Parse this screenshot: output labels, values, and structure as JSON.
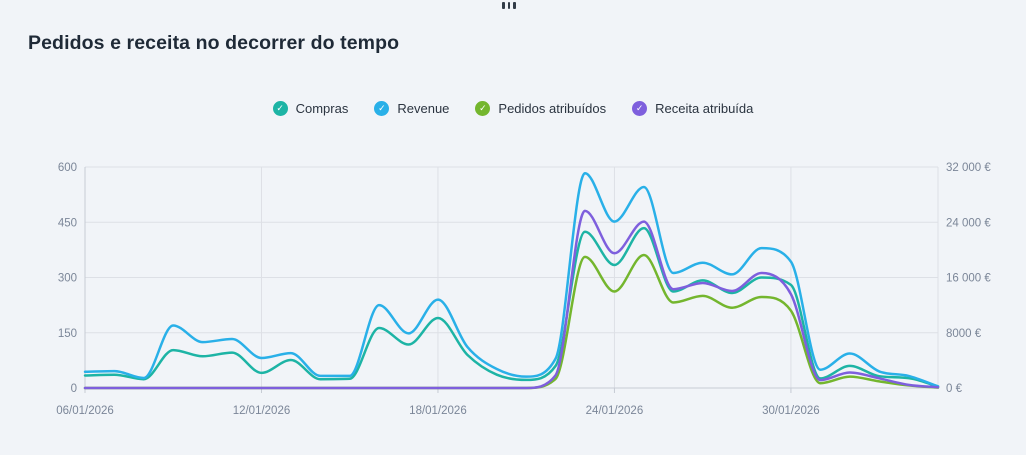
{
  "widget": {
    "title": "Pedidos e receita no decorrer do tempo",
    "drag_handle_icon": "grip-icon"
  },
  "legend": [
    {
      "label": "Compras",
      "color": "#1db4a5",
      "check_icon": "✓"
    },
    {
      "label": "Revenue",
      "color": "#29b0e8",
      "check_icon": "✓"
    },
    {
      "label": "Pedidos atribuídos",
      "color": "#74b62e",
      "check_icon": "✓"
    },
    {
      "label": "Receita atribuída",
      "color": "#7e5fdd",
      "check_icon": "✓"
    }
  ],
  "chart_data": {
    "type": "line",
    "title": "Pedidos e receita no decorrer do tempo",
    "x": [
      "06/01/2026",
      "07/01/2026",
      "08/01/2026",
      "09/01/2026",
      "10/01/2026",
      "11/01/2026",
      "12/01/2026",
      "13/01/2026",
      "14/01/2026",
      "15/01/2026",
      "16/01/2026",
      "17/01/2026",
      "18/01/2026",
      "19/01/2026",
      "20/01/2026",
      "21/01/2026",
      "22/01/2026",
      "23/01/2026",
      "24/01/2026",
      "25/01/2026",
      "26/01/2026",
      "27/01/2026",
      "28/01/2026",
      "29/01/2026",
      "30/01/2026",
      "31/01/2026",
      "01/02/2026",
      "02/02/2026",
      "03/02/2026",
      "04/02/2026"
    ],
    "x_tick_labels": [
      "06/01/2026",
      "12/01/2026",
      "18/01/2026",
      "24/01/2026",
      "30/01/2026"
    ],
    "x_tick_indices": [
      0,
      6,
      12,
      18,
      24
    ],
    "left_axis": {
      "tick_labels": [
        "0",
        "150",
        "300",
        "450",
        "600"
      ],
      "ticks": [
        0,
        150,
        300,
        450,
        600
      ],
      "range": [
        0,
        600
      ]
    },
    "right_axis": {
      "tick_labels": [
        "0 €",
        "8000 €",
        "16 000 €",
        "24 000 €",
        "32 000 €"
      ],
      "ticks": [
        0,
        8000,
        16000,
        24000,
        32000
      ],
      "range": [
        0,
        32000
      ]
    },
    "grid": true,
    "legend_position": "top",
    "series": [
      {
        "name": "Compras",
        "axis": "left",
        "color": "#1db4a5",
        "values": [
          34,
          36,
          24,
          103,
          86,
          96,
          41,
          76,
          24,
          25,
          163,
          118,
          190,
          90,
          36,
          22,
          60,
          424,
          334,
          434,
          262,
          292,
          258,
          300,
          280,
          26,
          60,
          32,
          27,
          4
        ]
      },
      {
        "name": "Revenue",
        "axis": "right",
        "color": "#29b0e8",
        "values": [
          2350,
          2450,
          1450,
          9050,
          6650,
          7100,
          4350,
          5050,
          1750,
          1750,
          12000,
          7900,
          12800,
          5950,
          2750,
          1650,
          4250,
          31100,
          24100,
          29100,
          16650,
          18150,
          16450,
          20250,
          18300,
          2650,
          5000,
          2400,
          1750,
          250
        ]
      },
      {
        "name": "Pedidos atribuídos",
        "axis": "left",
        "color": "#74b62e",
        "values": [
          0,
          0,
          0,
          0,
          0,
          0,
          0,
          0,
          0,
          0,
          0,
          0,
          0,
          0,
          0,
          0,
          25,
          356,
          262,
          361,
          232,
          250,
          218,
          247,
          210,
          13,
          31,
          18,
          7,
          1
        ]
      },
      {
        "name": "Receita atribuída",
        "axis": "right",
        "color": "#7e5fdd",
        "values": [
          0,
          0,
          0,
          0,
          0,
          0,
          0,
          0,
          0,
          0,
          0,
          0,
          0,
          0,
          0,
          0,
          1850,
          25650,
          19500,
          24100,
          14300,
          15200,
          14050,
          16650,
          13600,
          1150,
          2250,
          1400,
          450,
          100
        ]
      }
    ]
  },
  "colors": {
    "background": "#f1f4f8",
    "gridline": "#dde0e6",
    "axis_line": "#c6cbd4",
    "tick_label": "#7b8698",
    "title_text": "#1f2a37"
  }
}
